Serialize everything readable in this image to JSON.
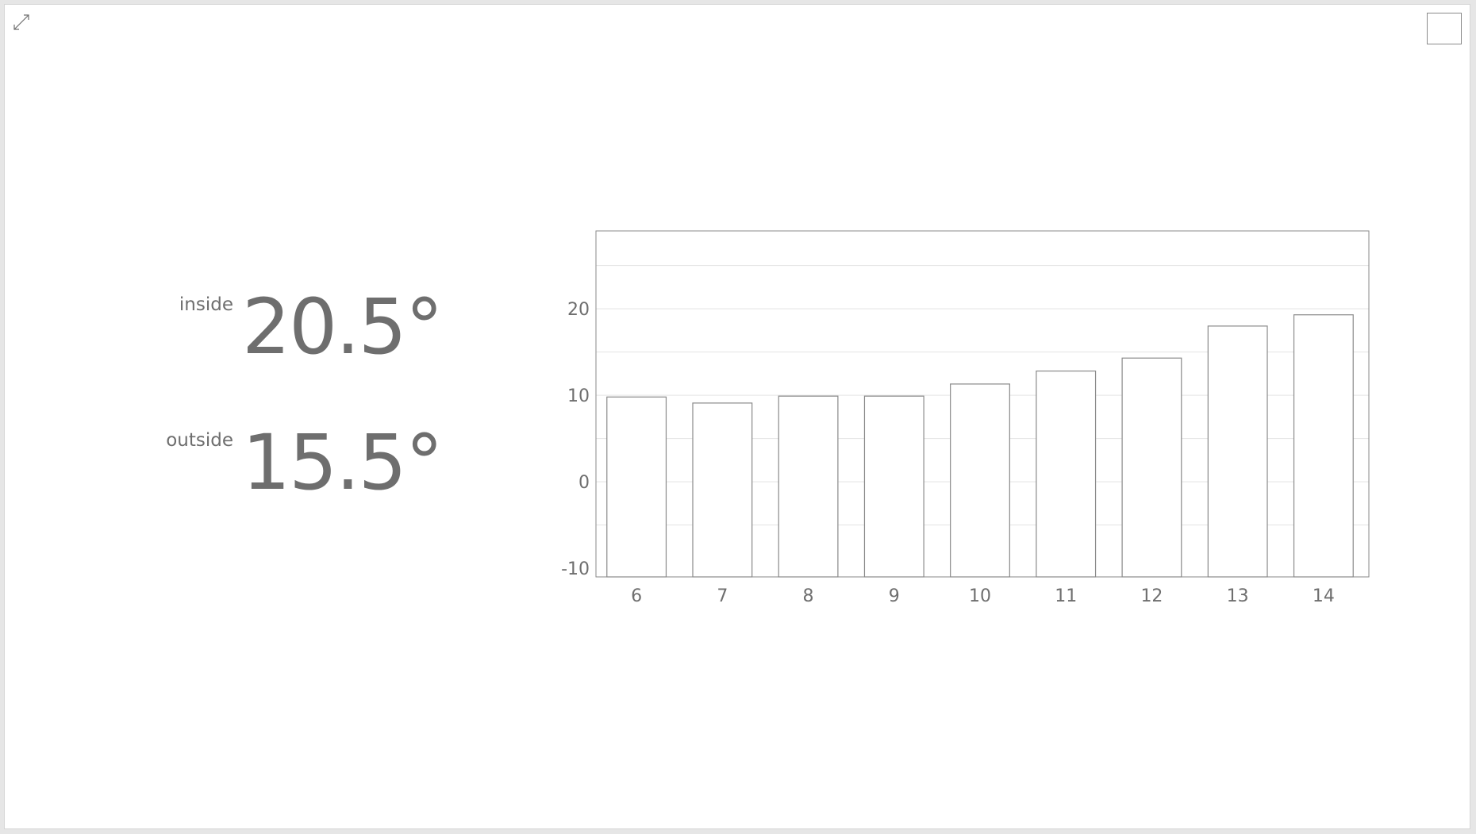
{
  "readings": {
    "inside": {
      "label": "inside",
      "value": "20.5°"
    },
    "outside": {
      "label": "outside",
      "value": "15.5°"
    }
  },
  "icons": {
    "expand": "expand-icon",
    "square": "square-icon"
  },
  "colors": {
    "text": "#6e6e6e",
    "bar_stroke": "#8a8a8a",
    "grid": "#e3e3e3",
    "frame": "#8a8a8a"
  },
  "chart_data": {
    "type": "bar",
    "categories": [
      "6",
      "7",
      "8",
      "9",
      "10",
      "11",
      "12",
      "13",
      "14"
    ],
    "series": [
      {
        "values": [
          9.8,
          9.1,
          9.9,
          9.9,
          11.3,
          12.8,
          14.3,
          18.0,
          19.3
        ]
      }
    ],
    "yticks": [
      20,
      10,
      0,
      -10
    ],
    "ylim": [
      -11,
      29
    ],
    "grid": true,
    "legend": "none",
    "title": "",
    "xlabel": "",
    "ylabel": ""
  }
}
